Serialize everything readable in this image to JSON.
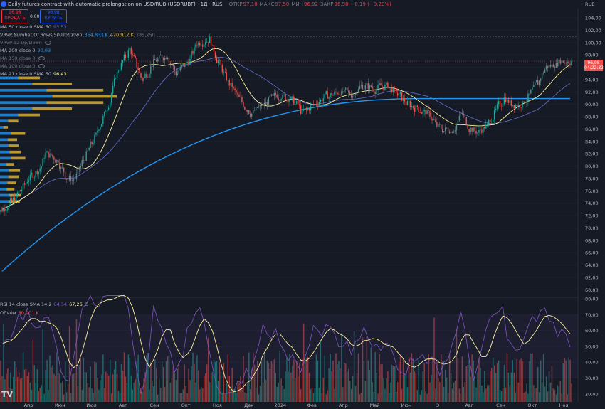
{
  "header": {
    "title": "Daily futures contract with automatic prolongation on USD/RUB (USDRUBF) · 1Д · RUS",
    "open_label": "ОТКР",
    "open": "97,18",
    "high_label": "МАКС",
    "high": "97,50",
    "low_label": "МИН",
    "low": "96,92",
    "close_label": "ЗАКР",
    "close": "96,98",
    "change": "−0,19 (−0,20%)",
    "currency": "RUB"
  },
  "trade": {
    "sell_price": "96,98",
    "sell_label": "ПРОДАТЬ",
    "spread": "0,00",
    "buy_price": "96,98",
    "buy_label": "КУПИТЬ"
  },
  "indicators": {
    "ma50": {
      "label": "MA 50 close 0 SMA 50",
      "value": "93,53"
    },
    "vrvp": {
      "label": "VRVP Number Of Rows 50 Up/Down",
      "v1": "364,833 K",
      "v2": "420,917 K",
      "v3": "785,750"
    },
    "vrvp2": {
      "label": "VRVP 12 Up/Down"
    },
    "ma200": {
      "label": "MA 200 close 0",
      "value": "90,93"
    },
    "ma150": {
      "label": "MA 150 close 0"
    },
    "ma100": {
      "label": "MA 100 close 0"
    },
    "ma21": {
      "label": "MA 21 close 0 SMA 50",
      "value": "96,43"
    },
    "rsi": {
      "label": "RSI 14 close SMA 14 2",
      "v1": "64,54",
      "v2": "67,26",
      "v3": "∅"
    },
    "volume": {
      "label": "Объём",
      "value": "30,901 K"
    }
  },
  "price_badge": {
    "price": "96,98",
    "countdown": "04:22:32"
  },
  "logo": "TV",
  "colors": {
    "background": "#161a25",
    "up": "#26a69a",
    "down": "#ef5350",
    "ma200": "#2196f3",
    "ma50": "#5c6bc0",
    "ma21": "#fff59d",
    "vp_up": "#2196f3",
    "vp_down": "#e2b834",
    "rsi": "#7e57c2"
  },
  "chart_data": [
    {
      "type": "candlestick",
      "currency": "RUB",
      "x_ticks": [
        "Апр",
        "Июн",
        "Июл",
        "Авг",
        "Сен",
        "Окт",
        "Ноя",
        "Дек",
        "2024",
        "Фев",
        "Апр",
        "Май",
        "Июн",
        "Э",
        "Авг",
        "Сен",
        "Окт",
        "Ноя"
      ],
      "ylim": [
        59,
        105.5
      ],
      "y_ticks": [
        60,
        62,
        64,
        66,
        68,
        70,
        72,
        74,
        76,
        78,
        80,
        82,
        84,
        86,
        88,
        90,
        92,
        94,
        96,
        98,
        100,
        102,
        104
      ],
      "close_anchors": [
        [
          0,
          73
        ],
        [
          3,
          75
        ],
        [
          6,
          78
        ],
        [
          9,
          80
        ],
        [
          10,
          82
        ],
        [
          13,
          81
        ],
        [
          15,
          78
        ],
        [
          17,
          78
        ],
        [
          19,
          81
        ],
        [
          22,
          85
        ],
        [
          25,
          90
        ],
        [
          27,
          95
        ],
        [
          30,
          99
        ],
        [
          33,
          94
        ],
        [
          36,
          97
        ],
        [
          39,
          98
        ],
        [
          41,
          95
        ],
        [
          44,
          97
        ],
        [
          46,
          100
        ],
        [
          49,
          100.5
        ],
        [
          51,
          97
        ],
        [
          54,
          93
        ],
        [
          57,
          90
        ],
        [
          59,
          88.5
        ],
        [
          62,
          90
        ],
        [
          65,
          91.5
        ],
        [
          68,
          91
        ],
        [
          70,
          90
        ],
        [
          71,
          88.5
        ],
        [
          74,
          90
        ],
        [
          77,
          91.5
        ],
        [
          80,
          92
        ],
        [
          83,
          91.5
        ],
        [
          85,
          93
        ],
        [
          88,
          92.5
        ],
        [
          91,
          93
        ],
        [
          93,
          92
        ],
        [
          96,
          90
        ],
        [
          99,
          89
        ],
        [
          101,
          88.5
        ],
        [
          103,
          86.5
        ],
        [
          105,
          85.8
        ],
        [
          107,
          86
        ],
        [
          109,
          88.5
        ],
        [
          111,
          86
        ],
        [
          113,
          85.5
        ],
        [
          115,
          86.5
        ],
        [
          117,
          89
        ],
        [
          119,
          91
        ],
        [
          121,
          90
        ],
        [
          123,
          90
        ],
        [
          125,
          91.5
        ],
        [
          127,
          93.5
        ],
        [
          129,
          96
        ],
        [
          131,
          96.5
        ],
        [
          133,
          97
        ],
        [
          135,
          96.98
        ]
      ],
      "ma_lines": [
        {
          "name": "MA 200",
          "start": 63,
          "end": 90.93
        },
        {
          "name": "MA 50",
          "end": 93.53
        },
        {
          "name": "MA 21",
          "end": 96.43
        }
      ],
      "last_price": 96.98
    },
    {
      "type": "line",
      "name": "RSI",
      "ylim": [
        15,
        80
      ],
      "y_ticks": [
        20,
        30,
        40,
        50,
        60,
        70,
        80
      ],
      "band": [
        30,
        70
      ],
      "last_values": [
        64.54,
        67.26
      ]
    }
  ]
}
